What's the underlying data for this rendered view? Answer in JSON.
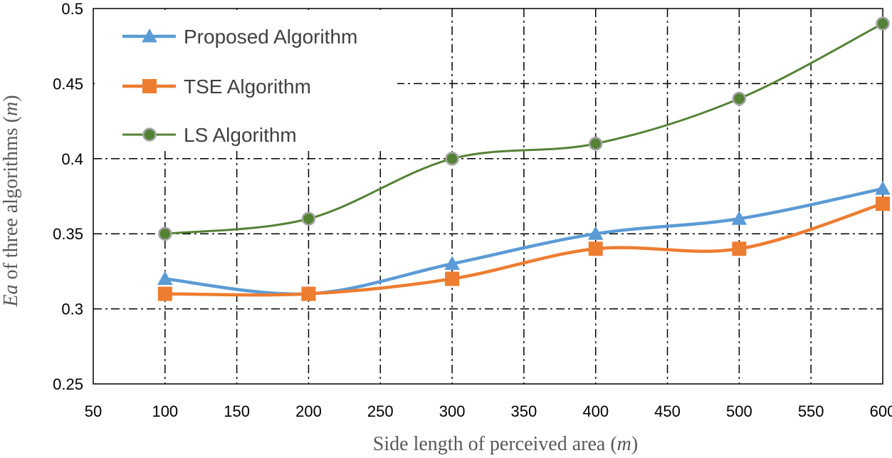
{
  "chart_data": {
    "type": "line",
    "title": "",
    "xlabel": "Side length of perceived area",
    "xlabel_unit": "m",
    "ylabel_var": "Ea",
    "ylabel_text": "of three algorithms",
    "ylabel_unit": "m",
    "xlim": [
      50,
      600
    ],
    "ylim": [
      0.25,
      0.5
    ],
    "xticks": [
      "50",
      "100",
      "150",
      "200",
      "250",
      "300",
      "350",
      "400",
      "450",
      "500",
      "550",
      "600"
    ],
    "yticks": [
      "0.25",
      "0.3",
      "0.35",
      "0.4",
      "0.45",
      "0.5"
    ],
    "x": [
      100,
      200,
      300,
      400,
      500,
      600
    ],
    "grid": true,
    "legend_position": "top-left",
    "series": [
      {
        "name": "Proposed Algorithm",
        "values": [
          0.32,
          0.31,
          0.33,
          0.35,
          0.36,
          0.38
        ],
        "color": "#5B9BD5",
        "marker": "triangle"
      },
      {
        "name": "TSE Algorithm",
        "values": [
          0.31,
          0.31,
          0.32,
          0.34,
          0.34,
          0.37
        ],
        "color": "#ED7D31",
        "marker": "square"
      },
      {
        "name": "LS Algorithm",
        "values": [
          0.35,
          0.36,
          0.4,
          0.41,
          0.44,
          0.49
        ],
        "color": "#548235",
        "marker": "circle"
      }
    ]
  }
}
